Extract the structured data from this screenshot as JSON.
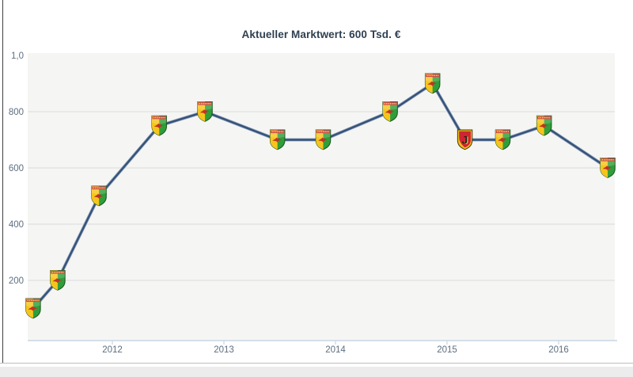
{
  "page": {
    "title": "Aktueller Marktwert: 600 Tsd. €"
  },
  "chart_data": {
    "type": "line",
    "title": "Aktueller Marktwert: 600 Tsd. €",
    "value_unit": "Tsd. €",
    "current_value_label": "600 Tsd. €",
    "grid": "horizontal-only",
    "legend": null,
    "x_axis": {
      "ticks": [
        "2012",
        "2013",
        "2014",
        "2015",
        "2016"
      ],
      "tick_values": [
        2012,
        2013,
        2014,
        2015,
        2016
      ],
      "range": [
        2011.24,
        2016.5
      ]
    },
    "y_axis": {
      "ticks": [
        {
          "label": "1,0",
          "value": 1000,
          "gridline": false
        },
        {
          "label": "800",
          "value": 800,
          "gridline": true
        },
        {
          "label": "600",
          "value": 600,
          "gridline": true
        },
        {
          "label": "400",
          "value": 400,
          "gridline": true
        },
        {
          "label": "200",
          "value": 200,
          "gridline": true
        }
      ],
      "range": [
        0,
        1010
      ]
    },
    "series": [
      {
        "name": "Marktwert",
        "points": [
          {
            "x": 2011.29,
            "value": 100,
            "marker": "club-crest-green"
          },
          {
            "x": 2011.51,
            "value": 200,
            "marker": "club-crest-green"
          },
          {
            "x": 2011.88,
            "value": 500,
            "marker": "club-crest-green"
          },
          {
            "x": 2012.42,
            "value": 750,
            "marker": "club-crest-green"
          },
          {
            "x": 2012.83,
            "value": 800,
            "marker": "club-crest-green"
          },
          {
            "x": 2013.48,
            "value": 700,
            "marker": "club-crest-green"
          },
          {
            "x": 2013.89,
            "value": 700,
            "marker": "club-crest-green"
          },
          {
            "x": 2014.49,
            "value": 800,
            "marker": "club-crest-green"
          },
          {
            "x": 2014.87,
            "value": 900,
            "marker": "club-crest-green"
          },
          {
            "x": 2015.16,
            "value": 700,
            "marker": "club-crest-red"
          },
          {
            "x": 2015.5,
            "value": 700,
            "marker": "club-crest-green"
          },
          {
            "x": 2015.87,
            "value": 750,
            "marker": "club-crest-green"
          },
          {
            "x": 2016.44,
            "value": 600,
            "marker": "club-crest-green"
          }
        ]
      }
    ],
    "colors": {
      "line": "#35527a",
      "line_halo": "#8299b3",
      "plot_background": "#f5f5f4",
      "gridline": "#dcdcdc",
      "axis_line": "#c9d6e3",
      "tick_text": "#5e6e80",
      "title_text": "#2e3f51",
      "crest_green": "#2f9e3a",
      "crest_yellow": "#f6c51c",
      "crest_red": "#ce2531"
    }
  }
}
